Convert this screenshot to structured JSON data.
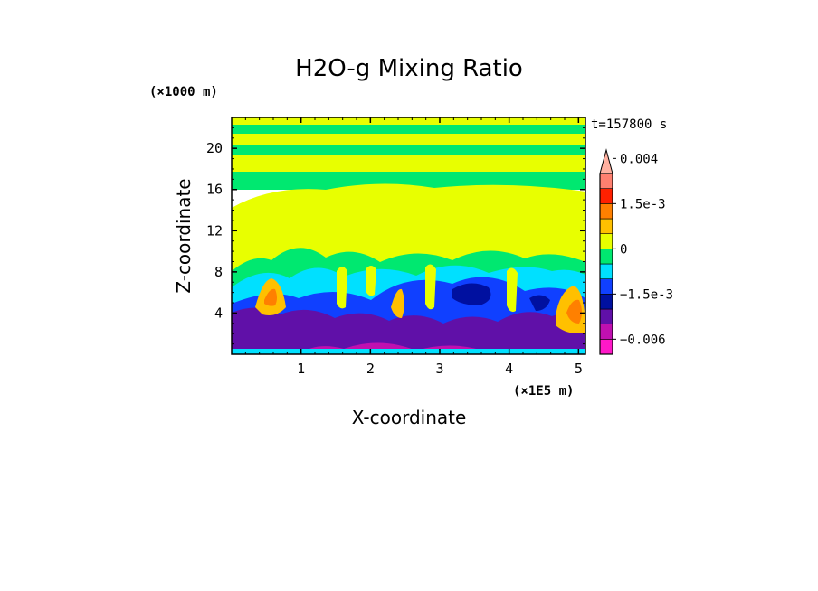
{
  "chart_data": {
    "type": "heatmap",
    "title": "H2O-g Mixing Ratio",
    "xlabel": "X-coordinate",
    "ylabel": "Z-coordinate",
    "x_unit": "(×1E5 m)",
    "y_unit": "(×1000 m)",
    "time_label": "t=157800 s",
    "xlim": [
      0,
      5.1
    ],
    "ylim": [
      0,
      23
    ],
    "x_ticks": [
      1,
      2,
      3,
      4,
      5
    ],
    "y_ticks": [
      4,
      8,
      12,
      16,
      20
    ],
    "colorbar": {
      "levels": [
        -0.0075,
        -0.006,
        -0.0045,
        -0.003,
        -0.0015,
        -0.001,
        -0.0005,
        0,
        0.0005,
        0.001,
        0.0015,
        0.002,
        0.003,
        0.004
      ],
      "colors": [
        "#ff18c8",
        "#c010b0",
        "#6010a8",
        "#0010a0",
        "#1040ff",
        "#00e0ff",
        "#00e870",
        "#e8ff00",
        "#ffc000",
        "#ff8000",
        "#ff2000",
        "#ff8070",
        "#ffb0a0"
      ],
      "tick_labels": [
        "0.004",
        "1.5e-3",
        "0",
        "−1.5e-3",
        "−0.006"
      ],
      "tick_values": [
        0.004,
        0.0015,
        0,
        -0.0015,
        -0.006
      ]
    },
    "layers": [
      {
        "z_range": [
          0,
          4.2
        ],
        "level": "low (purple)",
        "value": -0.0055
      },
      {
        "z_range": [
          4.2,
          9
        ],
        "level": "mixed (blue/cyan/orange plumes)",
        "value": -0.001
      },
      {
        "z_range": [
          9,
          17
        ],
        "level": "near zero (yellow)",
        "value": 0.0002
      },
      {
        "z_range": [
          17,
          23
        ],
        "level": "banded green/yellow",
        "value": -0.0002
      }
    ]
  }
}
